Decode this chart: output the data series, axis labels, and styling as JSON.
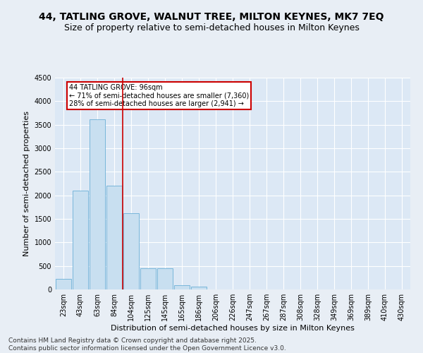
{
  "title": "44, TATLING GROVE, WALNUT TREE, MILTON KEYNES, MK7 7EQ",
  "subtitle": "Size of property relative to semi-detached houses in Milton Keynes",
  "xlabel": "Distribution of semi-detached houses by size in Milton Keynes",
  "ylabel": "Number of semi-detached properties",
  "categories": [
    "23sqm",
    "43sqm",
    "63sqm",
    "84sqm",
    "104sqm",
    "125sqm",
    "145sqm",
    "165sqm",
    "186sqm",
    "206sqm",
    "226sqm",
    "247sqm",
    "267sqm",
    "287sqm",
    "308sqm",
    "328sqm",
    "349sqm",
    "369sqm",
    "389sqm",
    "410sqm",
    "430sqm"
  ],
  "values": [
    230,
    2100,
    3620,
    2200,
    1620,
    450,
    450,
    90,
    55,
    0,
    0,
    0,
    0,
    0,
    0,
    0,
    0,
    0,
    0,
    0,
    0
  ],
  "bar_color": "#c8dff0",
  "bar_edge_color": "#6aafd6",
  "vline_x": 3.5,
  "vline_color": "#cc0000",
  "annotation_title": "44 TATLING GROVE: 96sqm",
  "annotation_line1": "← 71% of semi-detached houses are smaller (7,360)",
  "annotation_line2": "28% of semi-detached houses are larger (2,941) →",
  "annotation_box_color": "#cc0000",
  "ylim": [
    0,
    4500
  ],
  "yticks": [
    0,
    500,
    1000,
    1500,
    2000,
    2500,
    3000,
    3500,
    4000,
    4500
  ],
  "footer_line1": "Contains HM Land Registry data © Crown copyright and database right 2025.",
  "footer_line2": "Contains public sector information licensed under the Open Government Licence v3.0.",
  "bg_color": "#e8eef5",
  "plot_bg_color": "#dce8f5",
  "grid_color": "#ffffff",
  "title_fontsize": 10,
  "subtitle_fontsize": 9,
  "label_fontsize": 8,
  "tick_fontsize": 7,
  "annotation_fontsize": 7,
  "footer_fontsize": 6.5
}
